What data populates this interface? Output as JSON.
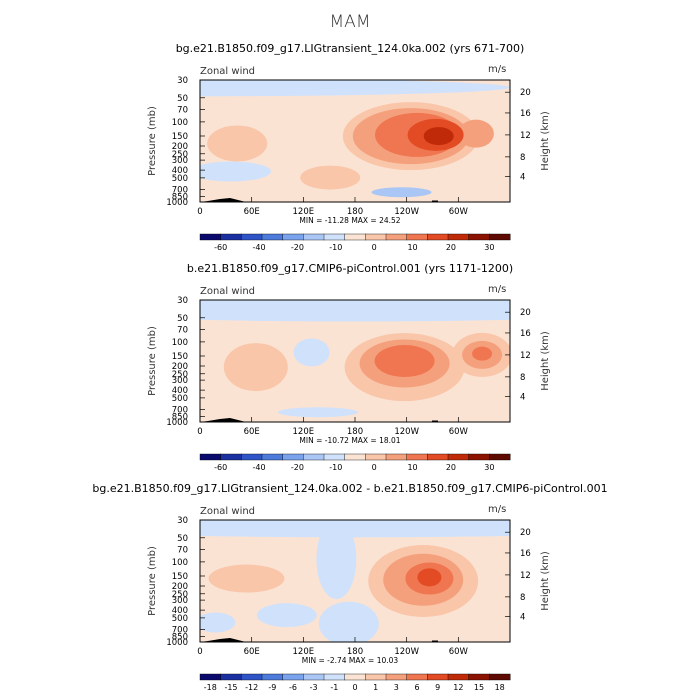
{
  "season_title": "MAM",
  "colors": {
    "scale": [
      "#0a0a6e",
      "#1a2fa0",
      "#2f54c8",
      "#4c7bdc",
      "#7ba2ec",
      "#aac6f5",
      "#d0e2fb",
      "#fbe3d3",
      "#f9c6aa",
      "#f5a07c",
      "#ef7650",
      "#e24b23",
      "#c12a08",
      "#8c1200",
      "#5e0a00"
    ]
  },
  "chart_data": [
    {
      "type": "heatmap",
      "title": "bg.e21.B1850.f09_g17.LIGtransient_124.0ka.002 (yrs 671-700)",
      "variable_label": "Zonal wind",
      "units": "m/s",
      "ylabel": "Pressure (mb)",
      "ylabel_right": "Height (km)",
      "x_ticks": [
        "0",
        "60E",
        "120E",
        "180",
        "120W",
        "60W"
      ],
      "y_ticks": [
        "30",
        "50",
        "70",
        "100",
        "150",
        "200",
        "250",
        "300",
        "400",
        "500",
        "700",
        "850",
        "1000"
      ],
      "height_ticks": [
        "4",
        "8",
        "12",
        "16",
        "20"
      ],
      "min": "-11.28",
      "max": "24.52",
      "stats_text": "MIN = -11.28   MAX =  24.52",
      "colorbar_levels": [
        -60,
        -40,
        -20,
        -10,
        0,
        10,
        20,
        30
      ],
      "features": [
        {
          "lon": 240,
          "p": 150,
          "level": 11,
          "note": "jet core max ~24.5 m/s"
        },
        {
          "lon": 50,
          "p": 170,
          "level": 8
        },
        {
          "lon": 300,
          "p": 140,
          "level": 9
        }
      ]
    },
    {
      "type": "heatmap",
      "title": "b.e21.B1850.f09_g17.CMIP6-piControl.001 (yrs 1171-1200)",
      "variable_label": "Zonal wind",
      "units": "m/s",
      "ylabel": "Pressure (mb)",
      "ylabel_right": "Height (km)",
      "x_ticks": [
        "0",
        "60E",
        "120E",
        "180",
        "120W",
        "60W"
      ],
      "y_ticks": [
        "30",
        "50",
        "70",
        "100",
        "150",
        "200",
        "250",
        "300",
        "400",
        "500",
        "700",
        "850",
        "1000"
      ],
      "height_ticks": [
        "4",
        "8",
        "12",
        "16",
        "20"
      ],
      "min": "-10.72",
      "max": "18.01",
      "stats_text": "MIN = -10.72   MAX =  18.01",
      "colorbar_levels": [
        -60,
        -40,
        -20,
        -10,
        0,
        10,
        20,
        30
      ],
      "features": [
        {
          "lon": 235,
          "p": 160,
          "level": 10,
          "note": "jet core max ~18 m/s"
        },
        {
          "lon": 335,
          "p": 150,
          "level": 9
        },
        {
          "lon": 60,
          "p": 170,
          "level": 8
        }
      ]
    },
    {
      "type": "heatmap",
      "title": "bg.e21.B1850.f09_g17.LIGtransient_124.0ka.002 - b.e21.B1850.f09_g17.CMIP6-piControl.001",
      "variable_label": "Zonal wind",
      "units": "m/s",
      "ylabel": "Pressure (mb)",
      "ylabel_right": "Height (km)",
      "x_ticks": [
        "0",
        "60E",
        "120E",
        "180",
        "120W",
        "60W"
      ],
      "y_ticks": [
        "30",
        "50",
        "70",
        "100",
        "150",
        "200",
        "250",
        "300",
        "400",
        "500",
        "700",
        "850",
        "1000"
      ],
      "height_ticks": [
        "4",
        "8",
        "12",
        "16",
        "20"
      ],
      "min": "-2.74",
      "max": "10.03",
      "stats_text": "MIN = -2.74   MAX =  10.03",
      "colorbar_levels": [
        -18,
        -15,
        -12,
        -9,
        -6,
        -3,
        -1,
        0,
        1,
        3,
        6,
        9,
        12,
        15,
        18
      ],
      "features": [
        {
          "lon": 255,
          "p": 160,
          "level": 12,
          "note": "difference max ~10 m/s"
        },
        {
          "lon": 50,
          "p": 180,
          "level": 9
        },
        {
          "lon": 150,
          "p": 250,
          "level": 5
        }
      ]
    }
  ]
}
